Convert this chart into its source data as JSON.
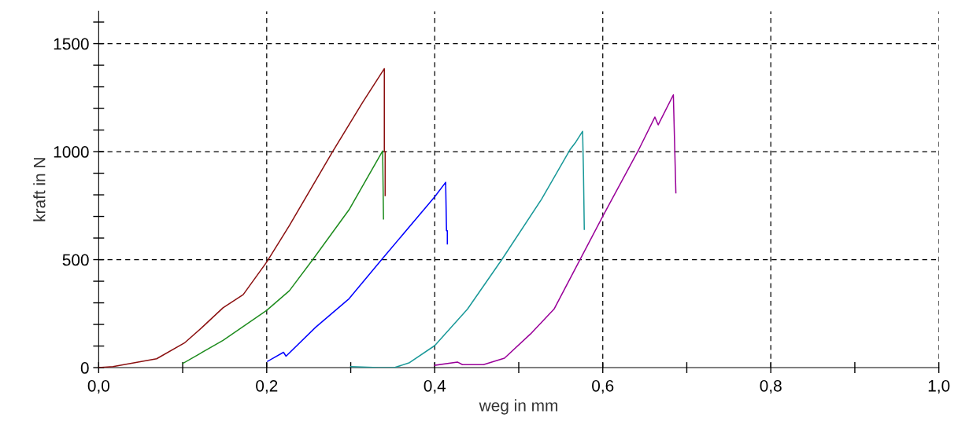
{
  "chart_data": {
    "type": "line",
    "xlabel": "weg in mm",
    "ylabel": "kraft in N",
    "xlim": [
      0,
      1
    ],
    "ylim": [
      0,
      1650
    ],
    "xticks": [
      {
        "value": 0,
        "label": "0,0"
      },
      {
        "value": 0.1,
        "label": null
      },
      {
        "value": 0.2,
        "label": "0,2"
      },
      {
        "value": 0.3,
        "label": null
      },
      {
        "value": 0.4,
        "label": "0,4"
      },
      {
        "value": 0.5,
        "label": null
      },
      {
        "value": 0.6,
        "label": "0,6"
      },
      {
        "value": 0.7,
        "label": null
      },
      {
        "value": 0.8,
        "label": "0,8"
      },
      {
        "value": 0.9,
        "label": null
      },
      {
        "value": 1.0,
        "label": "1,0"
      }
    ],
    "yticks": [
      0,
      {
        "value": 100,
        "label": null
      },
      {
        "value": 200,
        "label": null
      },
      {
        "value": 300,
        "label": null
      },
      {
        "value": 400,
        "label": null
      },
      500,
      {
        "value": 600,
        "label": null
      },
      {
        "value": 700,
        "label": null
      },
      {
        "value": 800,
        "label": null
      },
      {
        "value": 900,
        "label": null
      },
      1000,
      {
        "value": 1100,
        "label": null
      },
      {
        "value": 1200,
        "label": null
      },
      {
        "value": 1300,
        "label": null
      },
      {
        "value": 1400,
        "label": null
      },
      1500,
      {
        "value": 1600,
        "label": null
      }
    ],
    "grid": true,
    "line_style": "solid",
    "marker": "none",
    "series": [
      {
        "color": "#8b1010",
        "x": [
          0,
          0.017,
          0.069,
          0.102,
          0.123,
          0.148,
          0.172,
          0.2,
          0.227,
          0.278,
          0.314,
          0.34,
          0.34,
          0.341,
          0.341
        ],
        "values": [
          0,
          5,
          41,
          114,
          186,
          277,
          338,
          489,
          658,
          997,
          1227,
          1384,
          1000,
          1000,
          797
        ]
      },
      {
        "color": "#1e8c1e",
        "x": [
          0.1,
          0.148,
          0.2,
          0.227,
          0.255,
          0.298,
          0.338,
          0.339
        ],
        "values": [
          19,
          126,
          265,
          356,
          501,
          731,
          1003,
          688
        ]
      },
      {
        "color": "#0000ff",
        "x": [
          0.201,
          0.22,
          0.223,
          0.258,
          0.298,
          0.337,
          0.4,
          0.413,
          0.414,
          0.415,
          0.415
        ],
        "values": [
          29,
          71,
          53,
          186,
          319,
          501,
          791,
          858,
          634,
          634,
          573
        ]
      },
      {
        "color": "#1a9999",
        "x": [
          0.3,
          0.333,
          0.352,
          0.37,
          0.4,
          0.439,
          0.48,
          0.527,
          0.561,
          0.568,
          0.576,
          0.577,
          0.578
        ],
        "values": [
          5,
          0,
          0,
          23,
          102,
          271,
          501,
          779,
          1009,
          1045,
          1094,
          912,
          640
        ]
      },
      {
        "color": "#990099",
        "x": [
          0.4,
          0.427,
          0.433,
          0.458,
          0.483,
          0.514,
          0.542,
          0.573,
          0.6,
          0.642,
          0.662,
          0.666,
          0.684,
          0.685,
          0.687
        ],
        "values": [
          11,
          26,
          14,
          14,
          44,
          156,
          271,
          501,
          701,
          1003,
          1160,
          1124,
          1263,
          1112,
          809
        ]
      }
    ]
  }
}
